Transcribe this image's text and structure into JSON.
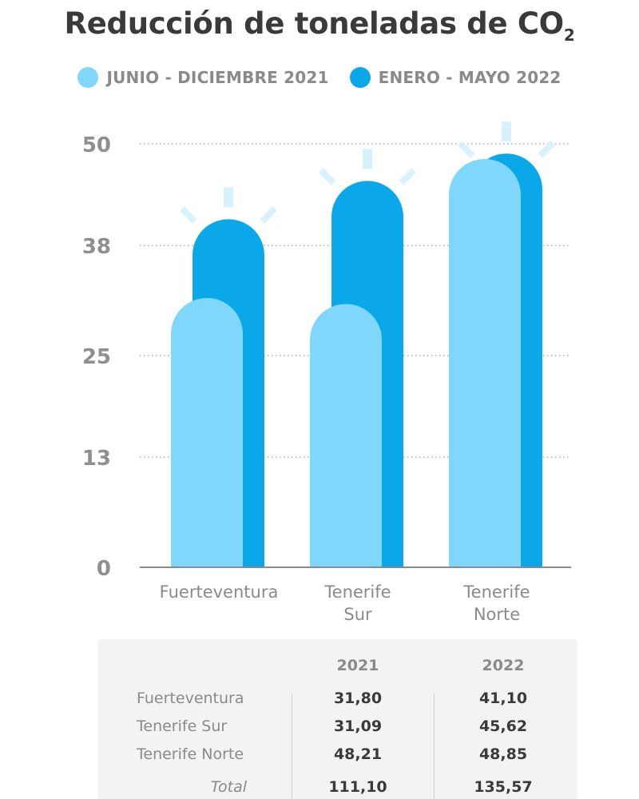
{
  "chart_data": {
    "type": "bar",
    "title": "Reducción de toneladas de CO",
    "title_subscript": "2",
    "categories": [
      "Fuerteventura",
      "Tenerife\nSur",
      "Tenerife\nNorte"
    ],
    "series": [
      {
        "name": "JUNIO - DICIEMBRE 2021",
        "color": "#7fd7fb",
        "values": [
          31.8,
          31.09,
          48.21
        ]
      },
      {
        "name": "ENERO - MAYO 2022",
        "color": "#0aa8e8",
        "values": [
          41.1,
          45.62,
          48.85
        ]
      }
    ],
    "yticks": [
      "0",
      "13",
      "25",
      "38",
      "50"
    ],
    "ylim": [
      0,
      50
    ],
    "grid": true,
    "legend": "top-center"
  },
  "table": {
    "headers": [
      "2021",
      "2022"
    ],
    "rows": [
      {
        "label": "Fuerteventura",
        "v2021": "31,80",
        "v2022": "41,10"
      },
      {
        "label": "Tenerife Sur",
        "v2021": "31,09",
        "v2022": "45,62"
      },
      {
        "label": "Tenerife Norte",
        "v2021": "48,21",
        "v2022": "48,85"
      }
    ],
    "total": {
      "label": "Total",
      "v2021": "111,10",
      "v2022": "135,57"
    }
  }
}
